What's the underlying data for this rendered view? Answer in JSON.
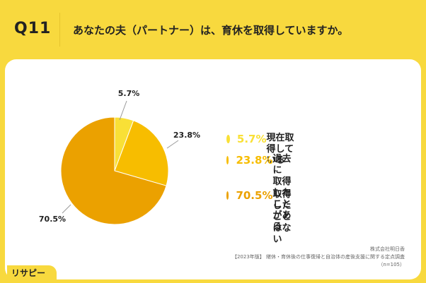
{
  "header": {
    "question_number": "Q11",
    "title": "あなたの夫（パートナー）は、育休を取得していますか。"
  },
  "colors": {
    "background": "#f8d93e",
    "slice_1": "#f9e036",
    "slice_2": "#f7bd00",
    "slice_3": "#eba100"
  },
  "chart_data": {
    "type": "pie",
    "categories": [
      "現在取得している",
      "過去に取得したことがある",
      "取得したことはない"
    ],
    "values": [
      5.7,
      23.8,
      70.5
    ],
    "data_labels": [
      "5.7%",
      "23.8%",
      "70.5%"
    ],
    "legend_position": "right"
  },
  "legend": [
    {
      "pct": "5.7%",
      "label_lines": [
        "現在取得している"
      ]
    },
    {
      "pct": "23.8%",
      "label_lines": [
        "過去に",
        "取得したことがある"
      ]
    },
    {
      "pct": "70.5%",
      "label_lines": [
        "取得したことはない"
      ]
    }
  ],
  "source": {
    "lines": [
      "株式会社明日香",
      "【2023年版】 継休・育休後の仕事復帰と自治体の産後支援に関する定点調査",
      "（n=105）"
    ]
  },
  "logo": {
    "text": "リサピー"
  }
}
